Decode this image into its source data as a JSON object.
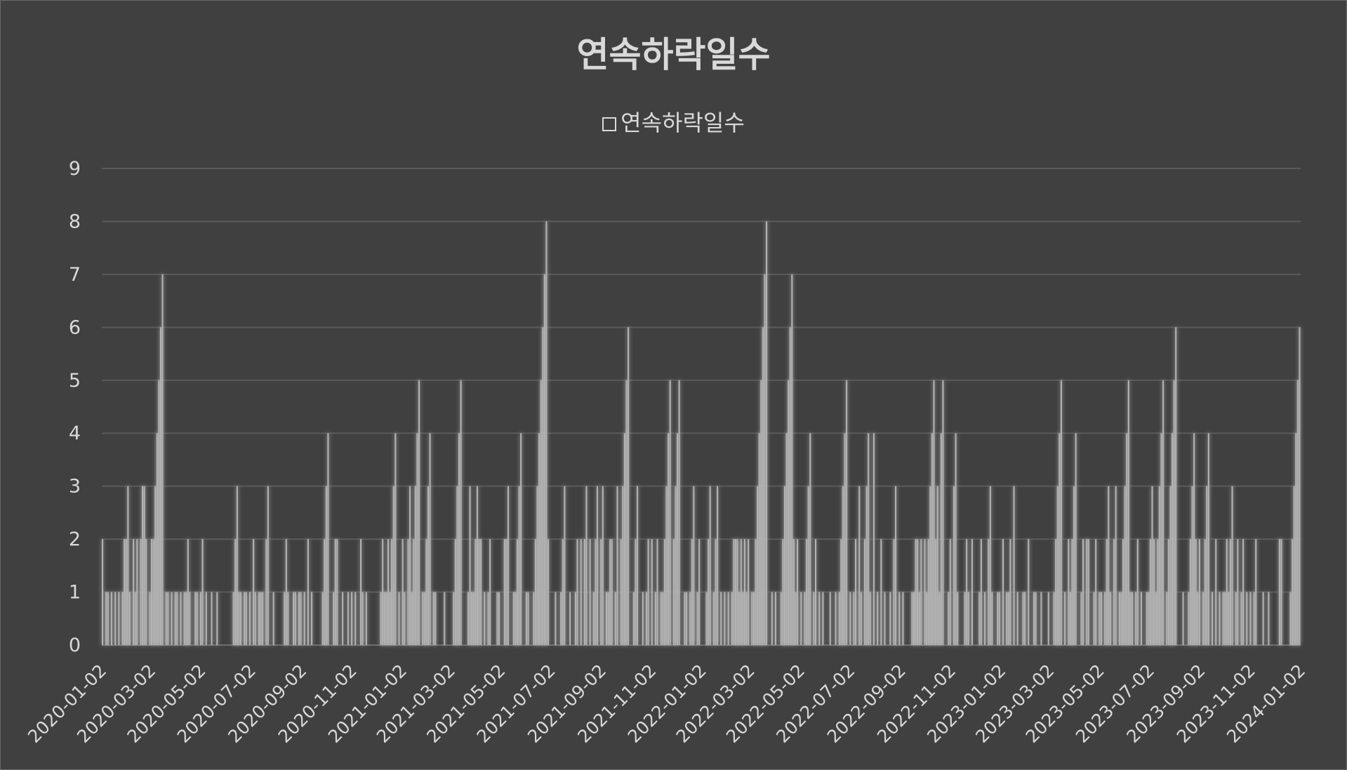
{
  "chart_data": {
    "type": "bar",
    "title": "연속하락일수",
    "legend": [
      "연속하락일수"
    ],
    "legend_position": "top",
    "xlabel": "",
    "ylabel": "",
    "ylim": [
      0,
      9
    ],
    "grid": true,
    "yticks": [
      "0",
      "1",
      "2",
      "3",
      "4",
      "5",
      "6",
      "7",
      "8",
      "9"
    ],
    "xticks": [
      "2020-01-02",
      "2020-03-02",
      "2020-05-02",
      "2020-07-02",
      "2020-09-02",
      "2020-11-02",
      "2021-01-02",
      "2021-03-02",
      "2021-05-02",
      "2021-07-02",
      "2021-09-02",
      "2021-11-02",
      "2022-01-02",
      "2022-03-02",
      "2022-05-02",
      "2022-07-02",
      "2022-09-02",
      "2022-11-02",
      "2023-01-02",
      "2023-03-02",
      "2023-05-02",
      "2023-07-02",
      "2023-09-02",
      "2023-11-02",
      "2024-01-02"
    ],
    "x_start": "2020-01-02",
    "x_end": "2024-01-02",
    "series": [
      {
        "name": "연속하락일수",
        "color": "#b3b3b3",
        "values": [
          2,
          0,
          1,
          1,
          0,
          1,
          0,
          1,
          0,
          1,
          0,
          1,
          2,
          2,
          3,
          1,
          0,
          2,
          1,
          2,
          0,
          2,
          3,
          3,
          2,
          0,
          1,
          2,
          2,
          3,
          4,
          5,
          6,
          7,
          0,
          1,
          1,
          0,
          1,
          0,
          1,
          1,
          0,
          1,
          0,
          1,
          1,
          2,
          1,
          0,
          0,
          1,
          1,
          0,
          1,
          2,
          0,
          1,
          0,
          0,
          1,
          0,
          0,
          1,
          0,
          0,
          0,
          0,
          0,
          0,
          0,
          0,
          1,
          2,
          3,
          1,
          1,
          0,
          1,
          1,
          0,
          1,
          0,
          2,
          1,
          0,
          1,
          1,
          1,
          0,
          2,
          3,
          0,
          0,
          1,
          0,
          0,
          0,
          0,
          0,
          1,
          2,
          1,
          0,
          0,
          1,
          1,
          0,
          1,
          1,
          0,
          1,
          0,
          2,
          0,
          1,
          0,
          0,
          0,
          0,
          0,
          1,
          2,
          3,
          4,
          0,
          0,
          1,
          2,
          2,
          0,
          0,
          1,
          0,
          0,
          1,
          0,
          1,
          0,
          1,
          0,
          0,
          2,
          1,
          0,
          1,
          0,
          0,
          0,
          0,
          0,
          0,
          0,
          1,
          2,
          1,
          1,
          2,
          1,
          2,
          3,
          4,
          0,
          1,
          0,
          2,
          1,
          0,
          2,
          3,
          1,
          2,
          3,
          4,
          5,
          0,
          1,
          1,
          2,
          3,
          4,
          0,
          1,
          1,
          0,
          0,
          0,
          0,
          1,
          0,
          0,
          0,
          0,
          1,
          2,
          3,
          4,
          5,
          0,
          0,
          0,
          1,
          3,
          1,
          1,
          2,
          3,
          2,
          2,
          0,
          1,
          0,
          1,
          2,
          0,
          0,
          0,
          1,
          1,
          0,
          0,
          2,
          2,
          3,
          0,
          0,
          1,
          1,
          2,
          3,
          4,
          0,
          0,
          1,
          1,
          0,
          0,
          1,
          2,
          3,
          4,
          5,
          6,
          7,
          8,
          2,
          0,
          0,
          0,
          1,
          0,
          0,
          1,
          2,
          3,
          0,
          0,
          1,
          0,
          0,
          1,
          2,
          0,
          2,
          0,
          2,
          3,
          0,
          2,
          0,
          1,
          2,
          3,
          0,
          2,
          3,
          0,
          1,
          1,
          2,
          2,
          0,
          1,
          3,
          0,
          2,
          3,
          4,
          5,
          6,
          0,
          0,
          1,
          2,
          3,
          0,
          0,
          1,
          0,
          1,
          2,
          0,
          2,
          0,
          1,
          2,
          0,
          1,
          1,
          2,
          3,
          4,
          5,
          0,
          2,
          3,
          4,
          5,
          0,
          0,
          1,
          1,
          0,
          1,
          2,
          3,
          0,
          1,
          2,
          0,
          0,
          0,
          1,
          2,
          3,
          0,
          1,
          2,
          3,
          0,
          1,
          0,
          1,
          0,
          1,
          0,
          1,
          2,
          2,
          2,
          1,
          2,
          1,
          2,
          1,
          2,
          0,
          1,
          1,
          2,
          3,
          4,
          5,
          6,
          7,
          8,
          0,
          0,
          1,
          0,
          1,
          0,
          0,
          1,
          2,
          3,
          4,
          5,
          6,
          7,
          2,
          1,
          2,
          0,
          1,
          0,
          1,
          2,
          3,
          4,
          0,
          1,
          2,
          0,
          1,
          0,
          1,
          0,
          0,
          0,
          1,
          0,
          0,
          1,
          0,
          1,
          2,
          3,
          4,
          5,
          0,
          1,
          0,
          1,
          2,
          0,
          3,
          1,
          0,
          2,
          3,
          4,
          1,
          0,
          4,
          0,
          1,
          0,
          2,
          0,
          1,
          0,
          0,
          1,
          0,
          2,
          3,
          0,
          1,
          0,
          1,
          0,
          0,
          0,
          0,
          1,
          1,
          2,
          2,
          1,
          2,
          0,
          2,
          1,
          2,
          3,
          4,
          5,
          2,
          3,
          1,
          4,
          5,
          0,
          0,
          1,
          2,
          0,
          3,
          4,
          1,
          0,
          0,
          0,
          1,
          2,
          1,
          0,
          2,
          0,
          0,
          0,
          1,
          2,
          0,
          1,
          0,
          2,
          3,
          1,
          0,
          0,
          1,
          1,
          0,
          2,
          0,
          1,
          1,
          2,
          0,
          3,
          0,
          1,
          0,
          0,
          1,
          1,
          0,
          2,
          0,
          0,
          1,
          1,
          0,
          0,
          1,
          0,
          0,
          0,
          1,
          0,
          0,
          1,
          2,
          3,
          4,
          5,
          0,
          1,
          0,
          2,
          1,
          2,
          3,
          4,
          0,
          0,
          1,
          2,
          0,
          2,
          2,
          0,
          0,
          1,
          2,
          0,
          1,
          1,
          0,
          1,
          2,
          3,
          1,
          0,
          2,
          3,
          0,
          1,
          1,
          2,
          3,
          4,
          5,
          1,
          1,
          0,
          1,
          2,
          0,
          1,
          0,
          0,
          1,
          1,
          2,
          3,
          2,
          1,
          2,
          3,
          4,
          5,
          0,
          1,
          2,
          3,
          4,
          5,
          6,
          0,
          0,
          0,
          1,
          0,
          0,
          1,
          2,
          3,
          4,
          2,
          1,
          2,
          0,
          1,
          2,
          3,
          4,
          0,
          1,
          0,
          2,
          0,
          1,
          0,
          1,
          1,
          2,
          1,
          2,
          3,
          0,
          1,
          2,
          0,
          1,
          2,
          0,
          1,
          0,
          1,
          0,
          1,
          2,
          0,
          0,
          0,
          1,
          0,
          0,
          1,
          0,
          0,
          0,
          0,
          0,
          2,
          2,
          0,
          0,
          0,
          0,
          1,
          2,
          3,
          4,
          5,
          6
        ]
      }
    ]
  }
}
